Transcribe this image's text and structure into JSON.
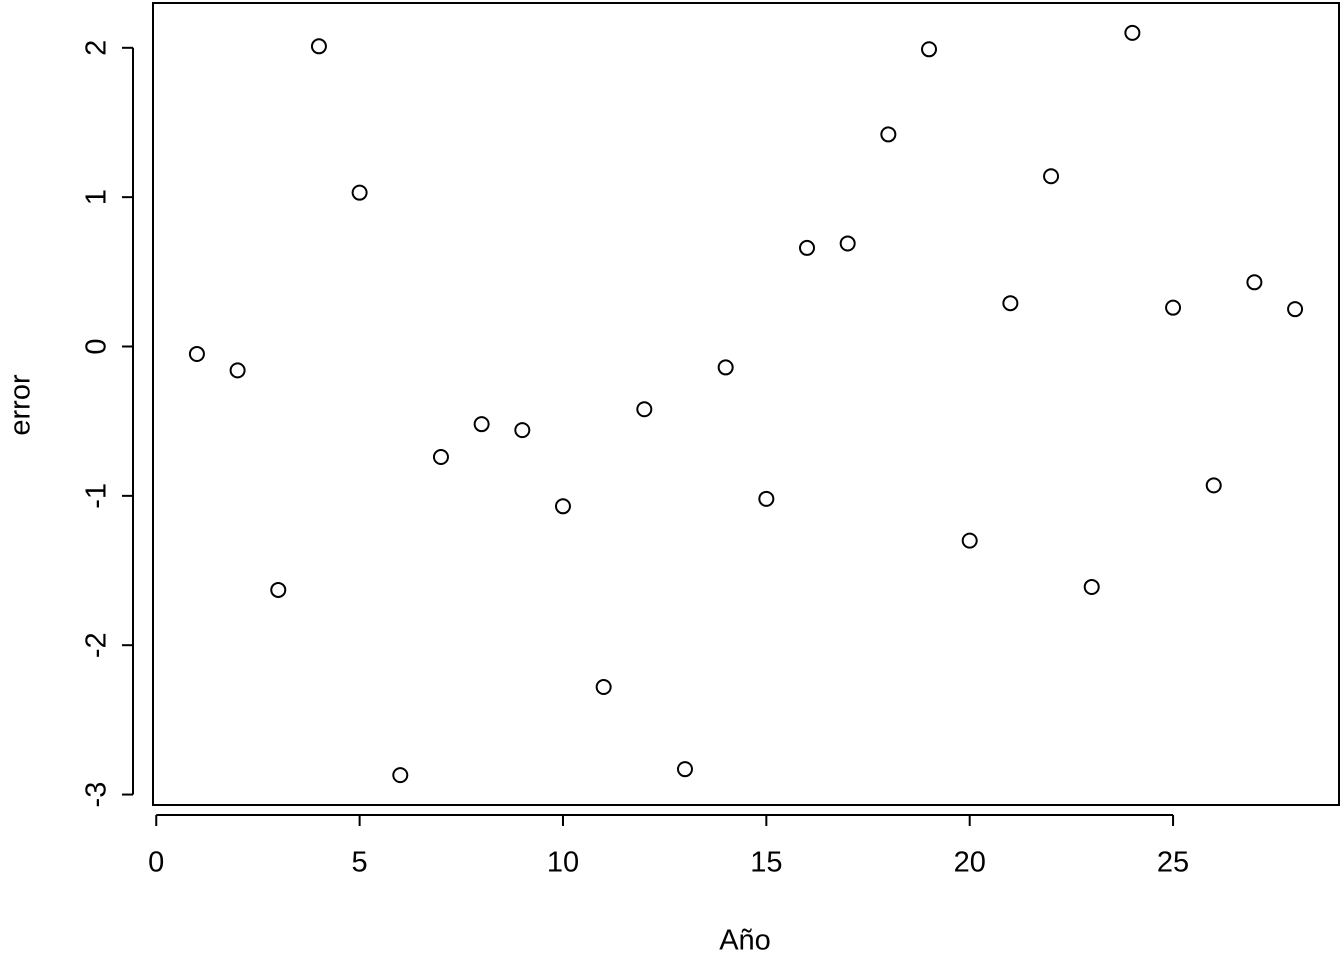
{
  "chart_data": {
    "type": "scatter",
    "x_label": "Año",
    "y_label": "error",
    "x": [
      1,
      2,
      3,
      4,
      5,
      6,
      7,
      8,
      9,
      10,
      11,
      12,
      13,
      14,
      15,
      16,
      17,
      18,
      19,
      20,
      21,
      22,
      23,
      24,
      25,
      26,
      27,
      28
    ],
    "values": [
      -0.05,
      -0.16,
      -1.63,
      2.01,
      1.03,
      -2.87,
      -0.74,
      -0.52,
      -0.56,
      -1.07,
      -2.28,
      -0.42,
      -2.83,
      -0.14,
      -1.02,
      0.66,
      0.69,
      1.42,
      1.99,
      -1.3,
      0.29,
      1.14,
      -1.61,
      2.1,
      0.26,
      -0.93,
      0.43,
      0.25
    ],
    "color": "#000000",
    "xlim": [
      -0.08,
      29.08
    ],
    "xticks": [
      0,
      5,
      10,
      15,
      20,
      25
    ],
    "ylim": [
      -3.07,
      2.3
    ],
    "yticks": [
      -3,
      -2,
      -1,
      0,
      1,
      2
    ]
  }
}
